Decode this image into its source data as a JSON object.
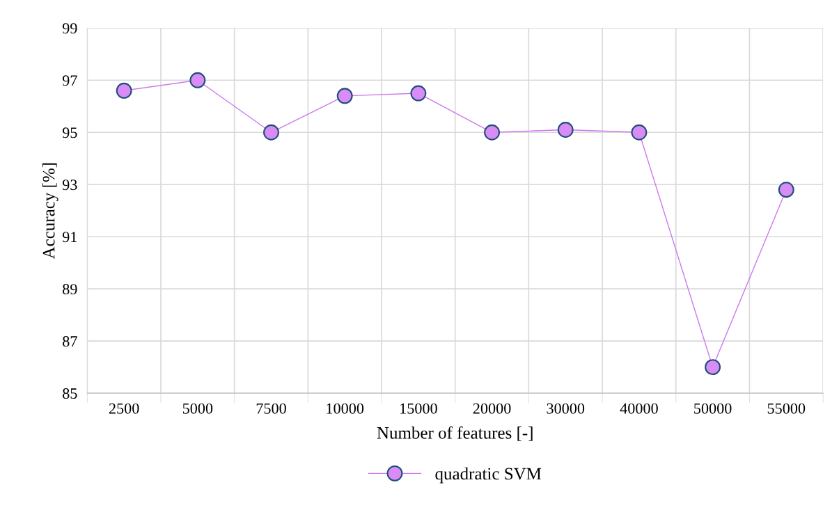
{
  "chart_data": {
    "type": "line",
    "xlabel": "Number of features [-]",
    "ylabel": "Accuracy [%]",
    "categories": [
      "2500",
      "5000",
      "7500",
      "10000",
      "15000",
      "20000",
      "30000",
      "40000",
      "50000",
      "55000"
    ],
    "series": [
      {
        "name": "quadratic SVM",
        "color": "#cc77ee",
        "values": [
          96.6,
          97.0,
          95.0,
          96.4,
          96.5,
          95.0,
          95.1,
          95.0,
          86.0,
          92.8
        ]
      }
    ],
    "ylim": [
      85,
      99
    ],
    "yticks": [
      85,
      87,
      89,
      91,
      93,
      95,
      97,
      99
    ],
    "grid": true,
    "legend": "bottom",
    "marker": "circle",
    "line_style": "solid"
  }
}
